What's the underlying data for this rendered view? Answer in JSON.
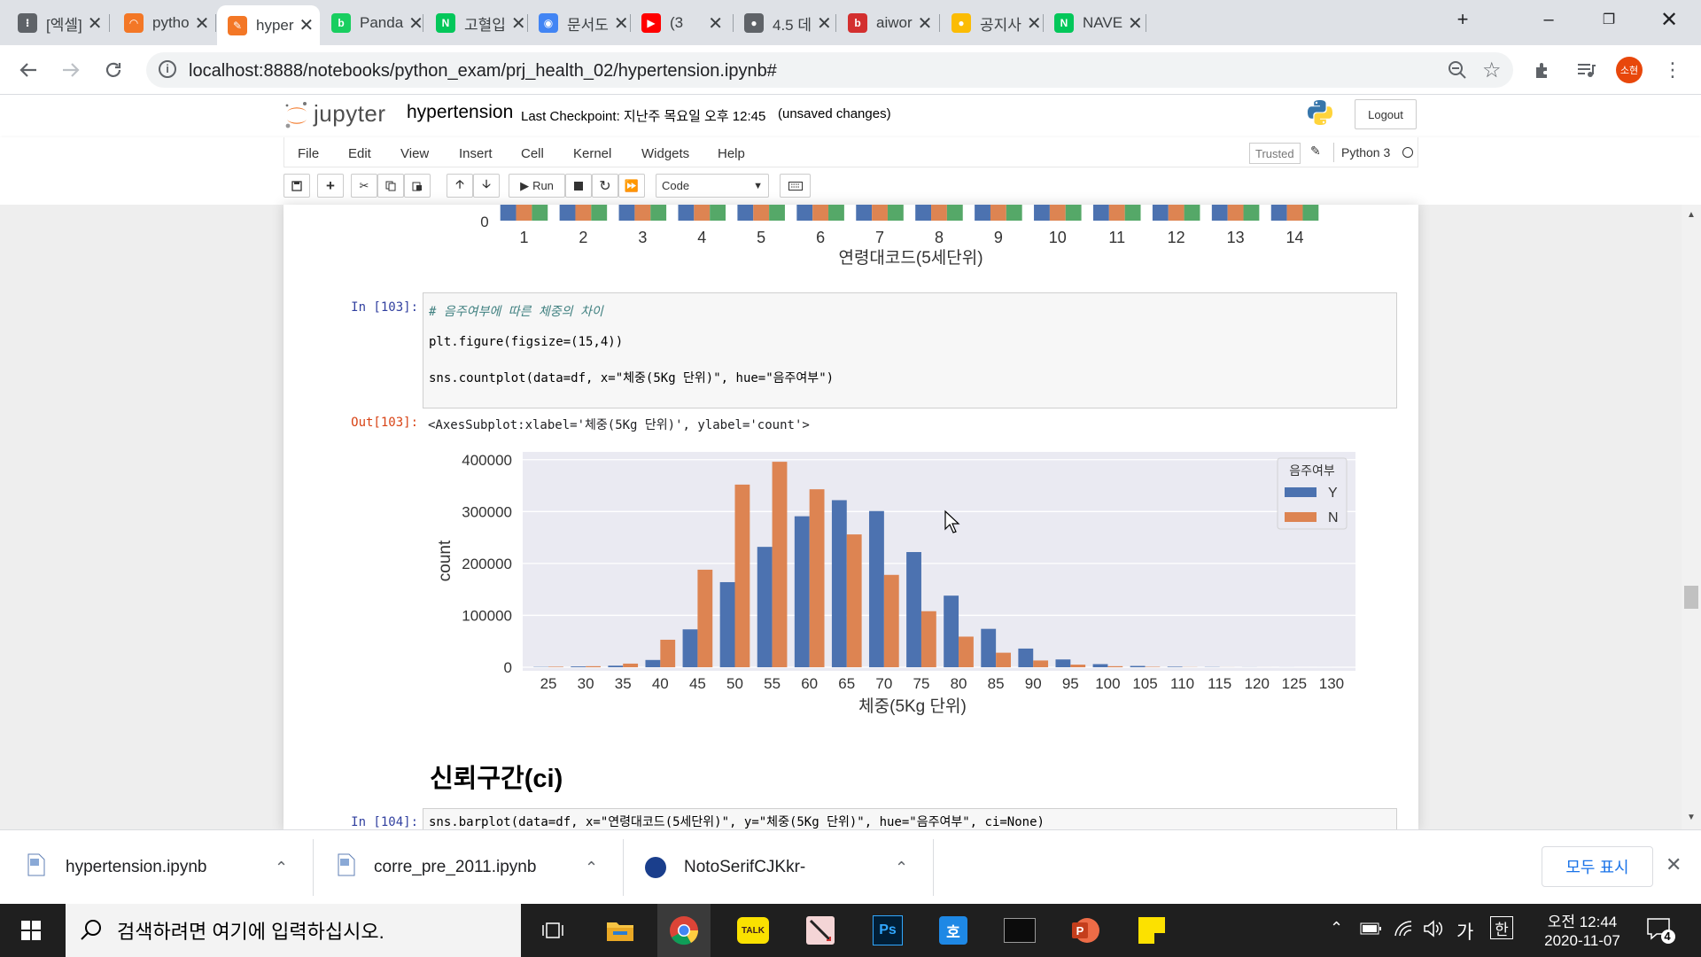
{
  "browser": {
    "tabs": [
      {
        "title": "[엑셀]",
        "icon": "google-apps-icon",
        "color": "#5f6368"
      },
      {
        "title": "pytho",
        "icon": "jupyter-icon",
        "color": "#f37726"
      },
      {
        "title": "hyper",
        "icon": "jupyter-notebook-icon",
        "color": "#f37726",
        "active": true
      },
      {
        "title": "Panda",
        "icon": "blog-icon",
        "color": "#19ce60"
      },
      {
        "title": "고혈입",
        "icon": "naver-icon",
        "color": "#03c75a"
      },
      {
        "title": "문서도",
        "icon": "document-icon",
        "color": "#4285f4"
      },
      {
        "title": "(3",
        "icon": "youtube-icon",
        "color": "#ff0000"
      },
      {
        "title": "4.5 데",
        "icon": "globe-icon",
        "color": "#5f6368"
      },
      {
        "title": "aiwor",
        "icon": "aiworks-icon",
        "color": "#d32f2f"
      },
      {
        "title": "공지사",
        "icon": "colorful-icon",
        "color": "#fbbc05"
      },
      {
        "title": "NAVE",
        "icon": "naver-icon",
        "color": "#03c75a"
      }
    ],
    "new_tab": "+",
    "url": "localhost:8888/notebooks/python_exam/prj_health_02/hypertension.ipynb#",
    "profile_initials": "소현"
  },
  "jupyter": {
    "logo_text": "jupyter",
    "notebook_name": "hypertension",
    "checkpoint": "Last Checkpoint: 지난주 목요일 오후 12:45",
    "unsaved": "(unsaved changes)",
    "logout": "Logout",
    "menu": [
      "File",
      "Edit",
      "View",
      "Insert",
      "Cell",
      "Kernel",
      "Widgets",
      "Help"
    ],
    "trusted": "Trusted",
    "kernel": "Python 3",
    "run_label": "Run",
    "cell_type": "Code"
  },
  "prev_chart": {
    "ytick": "0",
    "xticks": [
      "1",
      "2",
      "3",
      "4",
      "5",
      "6",
      "7",
      "8",
      "9",
      "10",
      "11",
      "12",
      "13",
      "14"
    ],
    "xlabel": "연령대코드(5세단위)"
  },
  "cell103": {
    "in_prompt": "In [103]:",
    "line1": "# 음주여부에 따른 체중의 차이",
    "line2": "plt.figure(figsize=(15,4))",
    "line3": "sns.countplot(data=df, x=\"체중(5Kg 단위)\", hue=\"음주여부\")",
    "out_prompt": "Out[103]:",
    "out_text": "<AxesSubplot:xlabel='체중(5Kg 단위)', ylabel='count'>"
  },
  "chart_data": {
    "type": "bar",
    "categories": [
      "25",
      "30",
      "35",
      "40",
      "45",
      "50",
      "55",
      "60",
      "65",
      "70",
      "75",
      "80",
      "85",
      "90",
      "95",
      "100",
      "105",
      "110",
      "115",
      "120",
      "125",
      "130"
    ],
    "series": [
      {
        "name": "Y",
        "color": "#4c72b0",
        "values": [
          500,
          1500,
          3000,
          14000,
          73000,
          164000,
          232000,
          291000,
          322000,
          301000,
          222000,
          138000,
          74000,
          36000,
          15000,
          6000,
          2500,
          1000,
          400,
          150,
          60,
          20
        ]
      },
      {
        "name": "N",
        "color": "#dd8452",
        "values": [
          1000,
          2000,
          7000,
          53000,
          188000,
          352000,
          396000,
          343000,
          256000,
          178000,
          108000,
          59000,
          28000,
          13000,
          5000,
          2000,
          800,
          300,
          100,
          40,
          15,
          5
        ]
      }
    ],
    "yticks": [
      "0",
      "100000",
      "200000",
      "300000",
      "400000"
    ],
    "ylim": [
      0,
      415000
    ],
    "xlabel": "체중(5Kg 단위)",
    "ylabel": "count",
    "legend_title": "음주여부",
    "legend_position": "top-right",
    "grid": true,
    "background": "#eaeaf2"
  },
  "section_heading": "신뢰구간(ci)",
  "cell104": {
    "in_prompt": "In [104]:",
    "line1": "sns.barplot(data=df, x=\"연령대코드(5세단위)\", y=\"체중(5Kg 단위)\", hue=\"음주여부\", ci=None)"
  },
  "downloads": {
    "items": [
      "hypertension.ipynb",
      "corre_pre_2011.ipynb",
      "NotoSerifCJKkr-"
    ],
    "show_all": "모두 표시"
  },
  "taskbar": {
    "search_placeholder": "검색하려면 여기에 입력하십시오.",
    "ime": "가",
    "ime2": "한",
    "time": "오전 12:44",
    "date": "2020-11-07",
    "notifications": "4"
  }
}
